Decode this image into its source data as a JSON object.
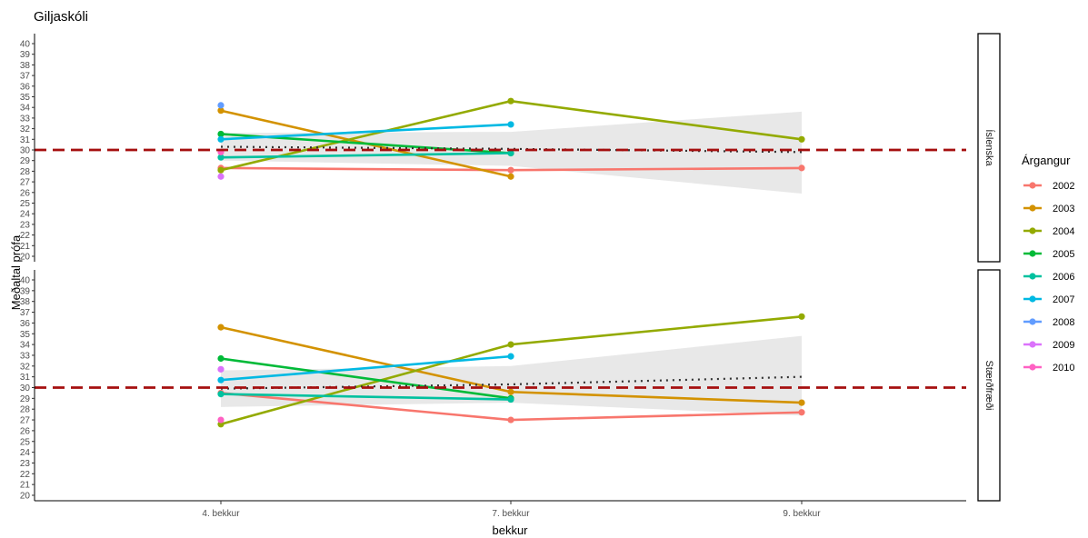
{
  "chart_data": {
    "type": "line",
    "title": "Giljaskóli",
    "xlabel": "bekkur",
    "ylabel": "Meðaltal prófa",
    "categories": [
      "4. bekkur",
      "7. bekkur",
      "9. bekkur"
    ],
    "ylim": [
      20,
      40
    ],
    "yticks": [
      20,
      21,
      22,
      23,
      24,
      25,
      26,
      27,
      28,
      29,
      30,
      31,
      32,
      33,
      34,
      35,
      36,
      37,
      38,
      39,
      40
    ],
    "reference_line": 30,
    "legend_title": "Árgangur",
    "legend_position": "right",
    "grid": false,
    "series_colors": {
      "2002": "#F8766D",
      "2003": "#D39200",
      "2004": "#93AA00",
      "2005": "#00BA38",
      "2006": "#00C19F",
      "2007": "#00B9E3",
      "2008": "#619CFF",
      "2009": "#DB72FB",
      "2010": "#FF61C3"
    },
    "panels": [
      {
        "name": "Íslenska",
        "series": [
          {
            "name": "2002",
            "values": [
              28.3,
              28.1,
              28.3
            ]
          },
          {
            "name": "2003",
            "values": [
              33.7,
              27.5,
              null
            ]
          },
          {
            "name": "2004",
            "values": [
              28.1,
              34.6,
              31.0
            ]
          },
          {
            "name": "2005",
            "values": [
              31.5,
              29.7,
              null
            ]
          },
          {
            "name": "2006",
            "values": [
              29.3,
              29.7,
              null
            ]
          },
          {
            "name": "2007",
            "values": [
              31.0,
              32.4,
              null
            ]
          },
          {
            "name": "2008",
            "values": [
              34.2,
              null,
              null
            ]
          },
          {
            "name": "2009",
            "values": [
              27.5,
              null,
              null
            ]
          },
          {
            "name": "2010",
            "values": [
              29.8,
              null,
              null
            ]
          }
        ],
        "trend": [
          30.3,
          30.1,
          29.8
        ],
        "ribbon": [
          [
            29.0,
            31.6
          ],
          [
            28.5,
            31.7
          ],
          [
            25.9,
            33.6
          ]
        ]
      },
      {
        "name": "Stærðfræði",
        "series": [
          {
            "name": "2002",
            "values": [
              29.5,
              27.0,
              27.7
            ]
          },
          {
            "name": "2003",
            "values": [
              35.6,
              29.6,
              28.6
            ]
          },
          {
            "name": "2004",
            "values": [
              26.6,
              34.0,
              36.6
            ]
          },
          {
            "name": "2005",
            "values": [
              32.7,
              29.0,
              null
            ]
          },
          {
            "name": "2006",
            "values": [
              29.4,
              28.9,
              null
            ]
          },
          {
            "name": "2007",
            "values": [
              30.7,
              32.9,
              null
            ]
          },
          {
            "name": "2008",
            "values": [
              null,
              null,
              null
            ]
          },
          {
            "name": "2009",
            "values": [
              31.7,
              null,
              null
            ]
          },
          {
            "name": "2010",
            "values": [
              27.0,
              null,
              null
            ]
          }
        ],
        "trend": [
          29.9,
          30.3,
          31.0
        ],
        "ribbon": [
          [
            28.2,
            31.6
          ],
          [
            28.6,
            32.0
          ],
          [
            27.4,
            34.8
          ]
        ]
      }
    ]
  }
}
